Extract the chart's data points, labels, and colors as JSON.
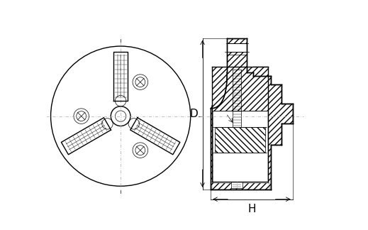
{
  "bg_color": "#ffffff",
  "line_color": "#000000",
  "dash_color": "#aaaaaa",
  "figsize": [
    5.19,
    3.24
  ],
  "dpi": 100,
  "dim_D_label": "D",
  "dim_H_label": "H",
  "lw_main": 1.0,
  "lw_thin": 0.5,
  "lw_dim": 0.6
}
